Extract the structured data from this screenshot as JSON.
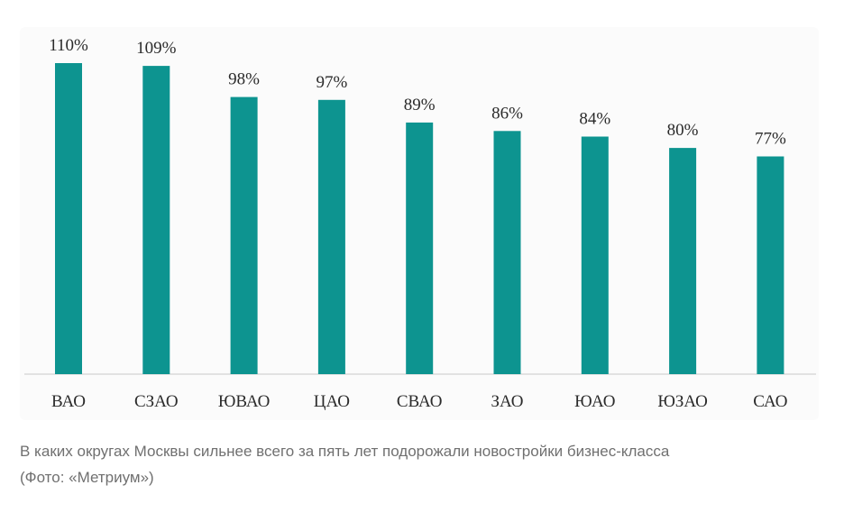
{
  "chart_data": {
    "type": "bar",
    "title": "",
    "xlabel": "",
    "ylabel": "",
    "ylim": [
      0,
      110
    ],
    "categories": [
      "ВАО",
      "СЗАО",
      "ЮВАО",
      "ЦАО",
      "СВАО",
      "ЗАО",
      "ЮАО",
      "ЮЗАО",
      "САО"
    ],
    "values": [
      110,
      109,
      98,
      97,
      89,
      86,
      84,
      80,
      77
    ],
    "value_labels": [
      "110%",
      "109%",
      "98%",
      "97%",
      "89%",
      "86%",
      "84%",
      "80%",
      "77%"
    ],
    "bar_color": "#0d9490",
    "axis_color": "#c8c8c8",
    "grid": false
  },
  "caption": {
    "line1": "В каких округах Москвы сильнее всего за пять лет подорожали новостройки бизнес-класса",
    "line2": "(Фото: «Метриум»)"
  }
}
